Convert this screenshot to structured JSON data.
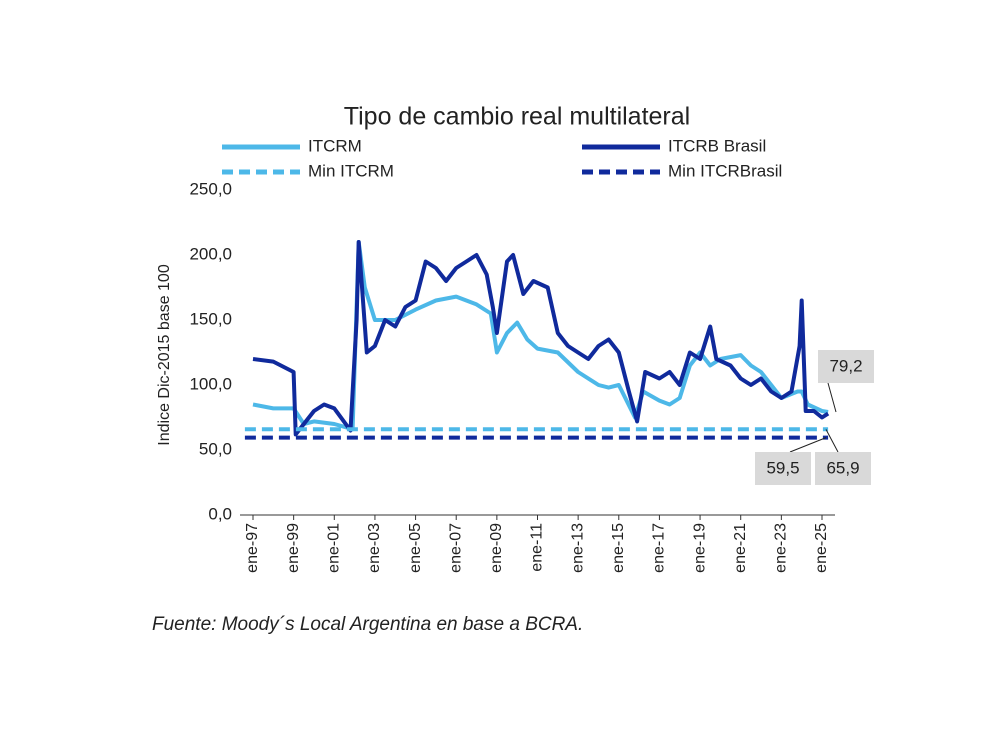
{
  "chart_data": {
    "type": "line",
    "title": "Tipo de cambio real multilateral",
    "y_label": "Indice Dic-2015 base 100",
    "source": "Fuente: Moody´s Local Argentina en base a BCRA.",
    "xlim": [
      1996.36,
      2025.64
    ],
    "xticks": [
      {
        "value": 1997,
        "label": "ene-97"
      },
      {
        "value": 1999,
        "label": "ene-99"
      },
      {
        "value": 2001,
        "label": "ene-01"
      },
      {
        "value": 2003,
        "label": "ene-03"
      },
      {
        "value": 2005,
        "label": "ene-05"
      },
      {
        "value": 2007,
        "label": "ene-07"
      },
      {
        "value": 2009,
        "label": "ene-09"
      },
      {
        "value": 2011,
        "label": "ene-11"
      },
      {
        "value": 2013,
        "label": "ene-13"
      },
      {
        "value": 2015,
        "label": "ene-15"
      },
      {
        "value": 2017,
        "label": "ene-17"
      },
      {
        "value": 2019,
        "label": "ene-19"
      },
      {
        "value": 2021,
        "label": "ene-21"
      },
      {
        "value": 2023,
        "label": "ene-23"
      },
      {
        "value": 2025,
        "label": "ene-25"
      }
    ],
    "ylim": [
      0,
      250
    ],
    "yticks": [
      {
        "value": 0,
        "label": "0,0"
      },
      {
        "value": 50,
        "label": "50,0"
      },
      {
        "value": 100,
        "label": "100,0"
      },
      {
        "value": 150,
        "label": "150,0"
      },
      {
        "value": 200,
        "label": "200,0"
      },
      {
        "value": 250,
        "label": "250,0"
      }
    ],
    "series": [
      {
        "name": "ITCRM",
        "color": "#4db8e8",
        "dash": false,
        "x": [
          1997,
          1998,
          1999,
          1999.5,
          2000,
          2001,
          2001.9,
          2002.2,
          2002.5,
          2003,
          2004,
          2005,
          2006,
          2007,
          2008,
          2008.7,
          2009,
          2009.5,
          2010,
          2010.5,
          2011,
          2012,
          2013,
          2014,
          2014.5,
          2015,
          2015.8,
          2016.2,
          2017,
          2017.5,
          2018,
          2018.5,
          2019,
          2019.5,
          2020,
          2021,
          2021.5,
          2022,
          2022.5,
          2023,
          2023.8,
          2024,
          2024.3,
          2025,
          2025.3
        ],
        "values": [
          85,
          82,
          82,
          70,
          72,
          70,
          66,
          210,
          175,
          150,
          150,
          158,
          165,
          168,
          162,
          155,
          125,
          140,
          148,
          135,
          128,
          125,
          110,
          100,
          98,
          100,
          75,
          95,
          88,
          85,
          90,
          115,
          125,
          115,
          120,
          123,
          115,
          110,
          100,
          90,
          95,
          95,
          85,
          80,
          79.2
        ]
      },
      {
        "name": "ITCRB Brasil",
        "color": "#102a9c",
        "dash": false,
        "x": [
          1997,
          1998,
          1999,
          1999.1,
          2000,
          2000.5,
          2001,
          2001.8,
          2002.1,
          2002.2,
          2002.6,
          2003,
          2003.5,
          2004,
          2004.5,
          2005,
          2005.5,
          2006,
          2006.5,
          2007,
          2007.5,
          2008,
          2008.5,
          2008.8,
          2009,
          2009.5,
          2009.8,
          2010.3,
          2010.8,
          2011.5,
          2012,
          2012.5,
          2013,
          2013.5,
          2014,
          2014.5,
          2015,
          2015.5,
          2015.9,
          2016.3,
          2017,
          2017.5,
          2018,
          2018.5,
          2019,
          2019.5,
          2019.8,
          2020.5,
          2021,
          2021.5,
          2022,
          2022.5,
          2023,
          2023.5,
          2023.9,
          2024,
          2024.2,
          2024.6,
          2025,
          2025.3
        ],
        "values": [
          120,
          118,
          110,
          62,
          80,
          85,
          82,
          65,
          150,
          210,
          125,
          130,
          150,
          145,
          160,
          165,
          195,
          190,
          180,
          190,
          195,
          200,
          185,
          160,
          140,
          195,
          200,
          170,
          180,
          175,
          140,
          130,
          125,
          120,
          130,
          135,
          125,
          95,
          72,
          110,
          105,
          110,
          100,
          125,
          120,
          145,
          120,
          115,
          105,
          100,
          105,
          95,
          90,
          95,
          130,
          165,
          80,
          80,
          75,
          78
        ]
      },
      {
        "name": "Min ITCRM",
        "color": "#4db8e8",
        "dash": true,
        "x": [
          1996.6,
          2025.3
        ],
        "values": [
          65.9,
          65.9
        ]
      },
      {
        "name": "Min ITCRBrasil",
        "color": "#102a9c",
        "dash": true,
        "x": [
          1996.6,
          2025.3
        ],
        "values": [
          59.5,
          59.5
        ]
      }
    ],
    "annotations": [
      {
        "value": 79.2,
        "label": "79,2"
      },
      {
        "value": 59.5,
        "label": "59,5"
      },
      {
        "value": 65.9,
        "label": "65,9"
      }
    ]
  }
}
